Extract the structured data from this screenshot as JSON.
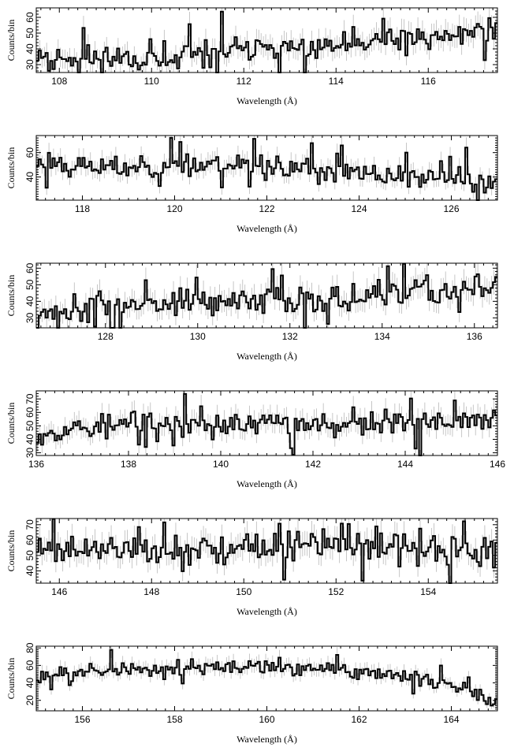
{
  "figure": {
    "xlabel": "Wavelength (Å)",
    "ylabel": "Counts/bin"
  },
  "chart_data": [
    {
      "type": "line",
      "xlabel": "Wavelength (Å)",
      "ylabel": "Counts/bin",
      "xlim": [
        107.5,
        117.5
      ],
      "ylim": [
        25,
        66
      ],
      "xticks": [
        108,
        110,
        112,
        114,
        116
      ],
      "yticks": [
        30,
        40,
        50,
        60
      ],
      "profile": [
        [
          107.5,
          38
        ],
        [
          108.5,
          34
        ],
        [
          109.5,
          35
        ],
        [
          110.5,
          33
        ],
        [
          111.5,
          38
        ],
        [
          112.5,
          40
        ],
        [
          113.5,
          40
        ],
        [
          114.5,
          43
        ],
        [
          115.5,
          45
        ],
        [
          116.5,
          48
        ],
        [
          117.0,
          52
        ],
        [
          117.5,
          52
        ]
      ],
      "spread": 9,
      "seed": 11
    },
    {
      "type": "line",
      "xlabel": "Wavelength (Å)",
      "ylabel": "Counts/bin",
      "xlim": [
        117.0,
        127.0
      ],
      "ylim": [
        21,
        74
      ],
      "xticks": [
        118,
        120,
        122,
        124,
        126
      ],
      "yticks": [
        40,
        60
      ],
      "profile": [
        [
          117.0,
          52
        ],
        [
          118.5,
          48
        ],
        [
          120.0,
          50
        ],
        [
          121.0,
          51
        ],
        [
          122.0,
          50
        ],
        [
          123.0,
          45
        ],
        [
          124.0,
          42
        ],
        [
          125.0,
          40
        ],
        [
          126.0,
          38
        ],
        [
          127.0,
          34
        ]
      ],
      "spread": 10,
      "seed": 23
    },
    {
      "type": "line",
      "xlabel": "Wavelength (Å)",
      "ylabel": "Counts/bin",
      "xlim": [
        126.5,
        136.5
      ],
      "ylim": [
        24,
        63
      ],
      "xticks": [
        128,
        130,
        132,
        134,
        136
      ],
      "yticks": [
        30,
        40,
        50,
        60
      ],
      "profile": [
        [
          126.5,
          34
        ],
        [
          128.0,
          37
        ],
        [
          129.5,
          38
        ],
        [
          131.0,
          40
        ],
        [
          132.5,
          42
        ],
        [
          134.0,
          43
        ],
        [
          135.0,
          45
        ],
        [
          136.5,
          48
        ]
      ],
      "spread": 9,
      "seed": 37
    },
    {
      "type": "line",
      "xlabel": "Wavelength (Å)",
      "ylabel": "Counts/bin",
      "xlim": [
        136.0,
        146.0
      ],
      "ylim": [
        28,
        76
      ],
      "xticks": [
        136,
        138,
        140,
        142,
        144,
        146
      ],
      "yticks": [
        30,
        40,
        50,
        60,
        70
      ],
      "profile": [
        [
          136.0,
          47
        ],
        [
          138.0,
          50
        ],
        [
          140.0,
          51
        ],
        [
          142.0,
          52
        ],
        [
          144.0,
          53
        ],
        [
          146.0,
          54
        ]
      ],
      "spread": 10,
      "seed": 53
    },
    {
      "type": "line",
      "xlabel": "Wavelength (Å)",
      "ylabel": "Counts/bin",
      "xlim": [
        145.5,
        155.5
      ],
      "ylim": [
        32,
        74
      ],
      "xticks": [
        146,
        148,
        150,
        152,
        154
      ],
      "yticks": [
        40,
        50,
        60,
        70
      ],
      "profile": [
        [
          145.5,
          53
        ],
        [
          148.0,
          53
        ],
        [
          150.0,
          54
        ],
        [
          152.0,
          56
        ],
        [
          154.0,
          54
        ],
        [
          155.5,
          52
        ]
      ],
      "spread": 10,
      "seed": 71
    },
    {
      "type": "line",
      "xlabel": "Wavelength (Å)",
      "ylabel": "Counts/bin",
      "xlim": [
        155.0,
        165.0
      ],
      "ylim": [
        8,
        82
      ],
      "xticks": [
        156,
        158,
        160,
        162,
        164
      ],
      "yticks": [
        20,
        40,
        60,
        80
      ],
      "profile": [
        [
          155.0,
          50
        ],
        [
          157.0,
          54
        ],
        [
          159.0,
          55
        ],
        [
          161.0,
          56
        ],
        [
          162.5,
          52
        ],
        [
          163.5,
          42
        ],
        [
          164.2,
          33
        ],
        [
          165.0,
          18
        ]
      ],
      "spread": 9,
      "seed": 97
    }
  ]
}
